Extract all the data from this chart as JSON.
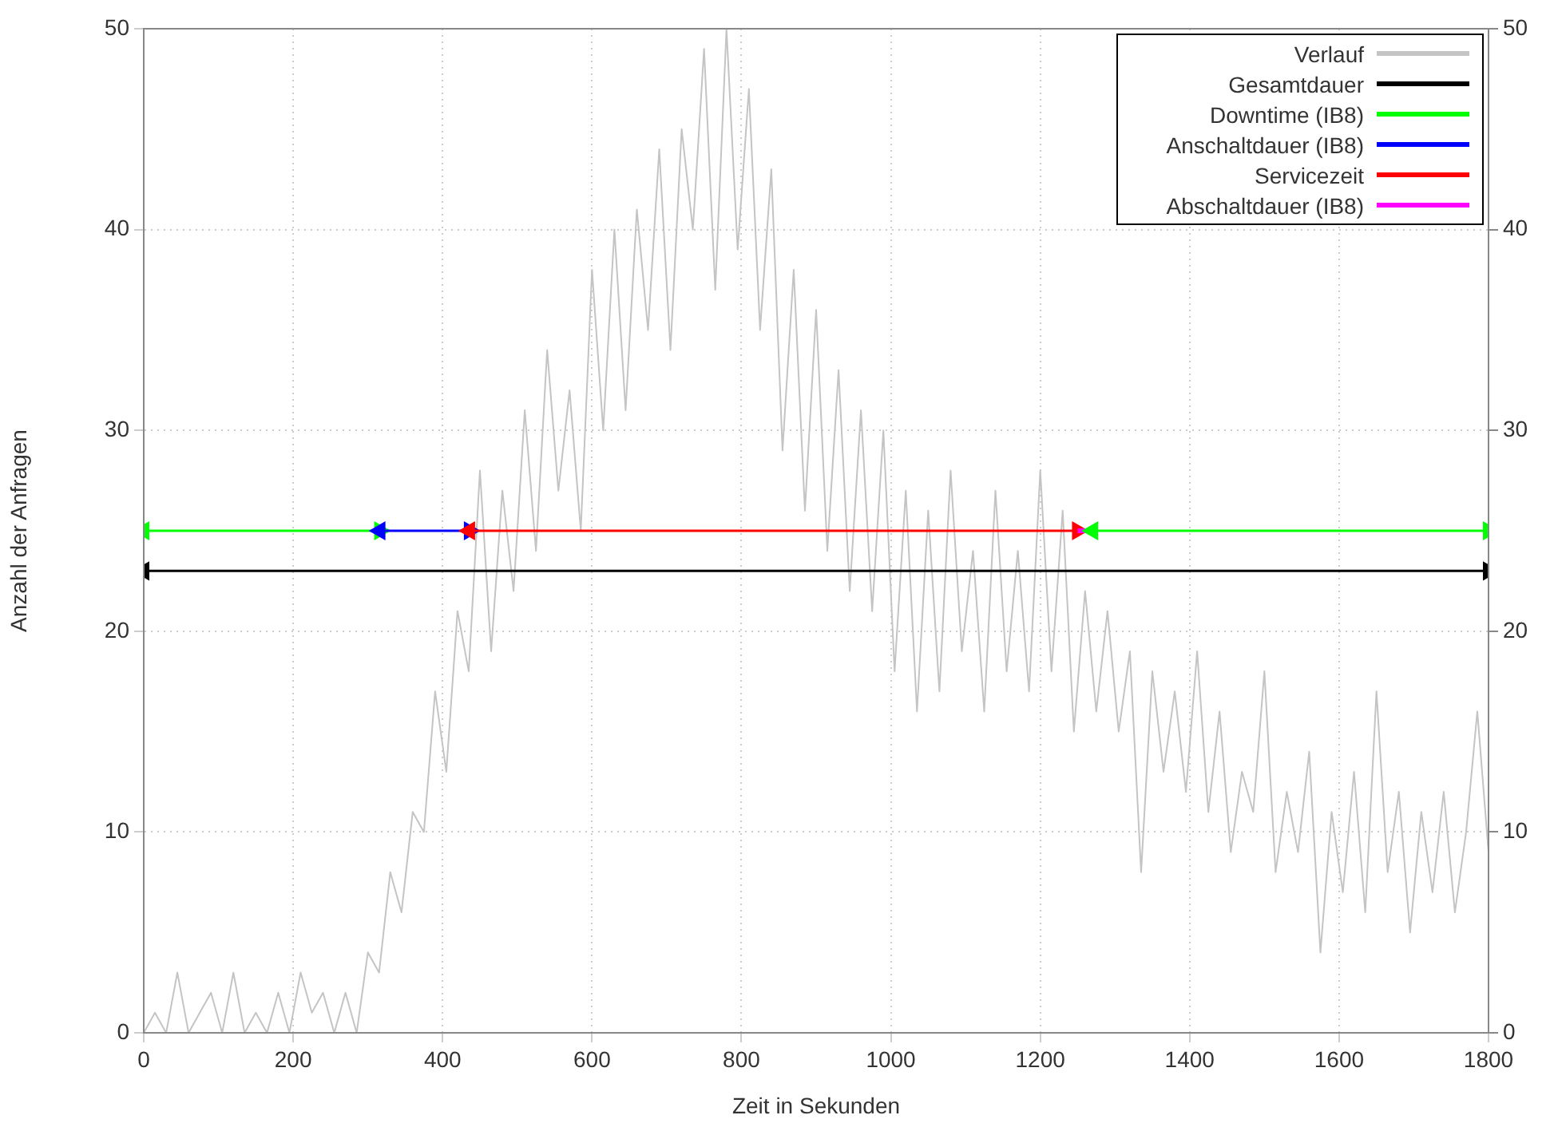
{
  "chart_data": {
    "type": "line",
    "xlabel": "Zeit in Sekunden",
    "ylabel": "Anzahl der Anfragen",
    "x": [
      0,
      15,
      30,
      45,
      60,
      75,
      90,
      105,
      120,
      135,
      150,
      165,
      180,
      195,
      210,
      225,
      240,
      255,
      270,
      285,
      300,
      315,
      330,
      345,
      360,
      375,
      390,
      405,
      420,
      435,
      450,
      465,
      480,
      495,
      510,
      525,
      540,
      555,
      570,
      585,
      600,
      615,
      630,
      645,
      660,
      675,
      690,
      705,
      720,
      735,
      750,
      765,
      780,
      795,
      810,
      825,
      840,
      855,
      870,
      885,
      900,
      915,
      930,
      945,
      960,
      975,
      990,
      1005,
      1020,
      1035,
      1050,
      1065,
      1080,
      1095,
      1110,
      1125,
      1140,
      1155,
      1170,
      1185,
      1200,
      1215,
      1230,
      1245,
      1260,
      1275,
      1290,
      1305,
      1320,
      1335,
      1350,
      1365,
      1380,
      1395,
      1410,
      1425,
      1440,
      1455,
      1470,
      1485,
      1500,
      1515,
      1530,
      1545,
      1560,
      1575,
      1590,
      1605,
      1620,
      1635,
      1650,
      1665,
      1680,
      1695,
      1710,
      1725,
      1740,
      1755,
      1770,
      1785,
      1800
    ],
    "series": [
      {
        "name": "Verlauf",
        "color": "#c4c4c4",
        "values": [
          0,
          1,
          0,
          3,
          0,
          1,
          2,
          0,
          3,
          0,
          1,
          0,
          2,
          0,
          3,
          1,
          2,
          0,
          2,
          0,
          4,
          3,
          8,
          6,
          11,
          10,
          17,
          13,
          21,
          18,
          28,
          19,
          27,
          22,
          31,
          24,
          34,
          27,
          32,
          25,
          38,
          30,
          40,
          31,
          41,
          35,
          44,
          34,
          45,
          40,
          49,
          37,
          50,
          39,
          47,
          35,
          43,
          29,
          38,
          26,
          36,
          24,
          33,
          22,
          31,
          21,
          30,
          18,
          27,
          16,
          26,
          17,
          28,
          19,
          24,
          16,
          27,
          18,
          24,
          17,
          28,
          18,
          26,
          15,
          22,
          16,
          21,
          15,
          19,
          8,
          18,
          13,
          17,
          12,
          19,
          11,
          16,
          9,
          13,
          11,
          18,
          8,
          12,
          9,
          14,
          4,
          11,
          7,
          13,
          6,
          17,
          8,
          12,
          5,
          11,
          7,
          12,
          6,
          10,
          16,
          9
        ]
      },
      {
        "name": "Gesamtdauer",
        "color": "#000000",
        "x": [
          0,
          1800
        ],
        "values": [
          23,
          23
        ],
        "marker": "triangle"
      },
      {
        "name": "Downtime (IB8)",
        "color": "#00ff00",
        "x": [
          0,
          316
        ],
        "values": [
          25,
          25
        ],
        "marker": "triangle"
      },
      {
        "name": "Anschaltdauer (IB8)",
        "color": "#0000ff",
        "x": [
          316,
          436
        ],
        "values": [
          25,
          25
        ],
        "marker": "triangle"
      },
      {
        "name": "Servicezeit",
        "color": "#ff0000",
        "x": [
          436,
          1250
        ],
        "values": [
          25,
          25
        ],
        "marker": "triangle"
      },
      {
        "name": "Abschaltdauer (IB8)",
        "color": "#ff00ff",
        "x": [
          1250,
          1270
        ],
        "values": [
          25,
          25
        ]
      },
      {
        "color": "#00ff00",
        "x": [
          1270,
          1800
        ],
        "values": [
          25,
          25
        ],
        "marker": "triangle"
      }
    ],
    "xlim": [
      0,
      1800
    ],
    "xticks": [
      0,
      200,
      400,
      600,
      800,
      1000,
      1200,
      1400,
      1600,
      1800
    ],
    "ylim": [
      0,
      50
    ],
    "yticks": [
      0,
      10,
      20,
      30,
      40,
      50
    ],
    "y2lim": [
      0,
      50
    ],
    "y2ticks": [
      0,
      10,
      20,
      30,
      40,
      50
    ],
    "grid": true,
    "legend": "top right"
  }
}
